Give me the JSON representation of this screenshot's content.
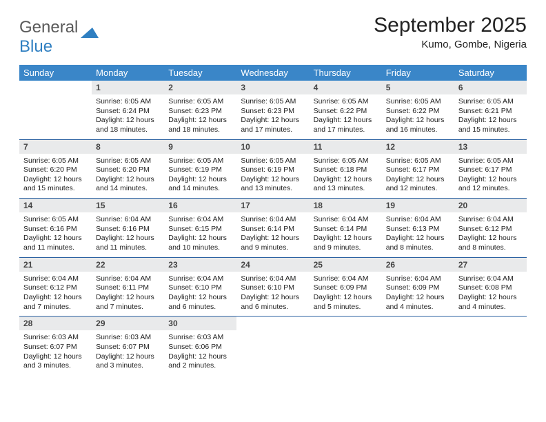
{
  "logo": {
    "text1": "General",
    "text2": "Blue"
  },
  "title": "September 2025",
  "location": "Kumo, Gombe, Nigeria",
  "colors": {
    "header_bg": "#3a86c8",
    "header_text": "#ffffff",
    "daynum_bg": "#e9eaeb",
    "week_border": "#2960a0",
    "logo_gray": "#5a5a5a",
    "logo_blue": "#2f7fc1"
  },
  "dayNames": [
    "Sunday",
    "Monday",
    "Tuesday",
    "Wednesday",
    "Thursday",
    "Friday",
    "Saturday"
  ],
  "weeks": [
    [
      {
        "n": "",
        "sr": "",
        "ss": "",
        "dl": ""
      },
      {
        "n": "1",
        "sr": "6:05 AM",
        "ss": "6:24 PM",
        "dl": "12 hours and 18 minutes."
      },
      {
        "n": "2",
        "sr": "6:05 AM",
        "ss": "6:23 PM",
        "dl": "12 hours and 18 minutes."
      },
      {
        "n": "3",
        "sr": "6:05 AM",
        "ss": "6:23 PM",
        "dl": "12 hours and 17 minutes."
      },
      {
        "n": "4",
        "sr": "6:05 AM",
        "ss": "6:22 PM",
        "dl": "12 hours and 17 minutes."
      },
      {
        "n": "5",
        "sr": "6:05 AM",
        "ss": "6:22 PM",
        "dl": "12 hours and 16 minutes."
      },
      {
        "n": "6",
        "sr": "6:05 AM",
        "ss": "6:21 PM",
        "dl": "12 hours and 15 minutes."
      }
    ],
    [
      {
        "n": "7",
        "sr": "6:05 AM",
        "ss": "6:20 PM",
        "dl": "12 hours and 15 minutes."
      },
      {
        "n": "8",
        "sr": "6:05 AM",
        "ss": "6:20 PM",
        "dl": "12 hours and 14 minutes."
      },
      {
        "n": "9",
        "sr": "6:05 AM",
        "ss": "6:19 PM",
        "dl": "12 hours and 14 minutes."
      },
      {
        "n": "10",
        "sr": "6:05 AM",
        "ss": "6:19 PM",
        "dl": "12 hours and 13 minutes."
      },
      {
        "n": "11",
        "sr": "6:05 AM",
        "ss": "6:18 PM",
        "dl": "12 hours and 13 minutes."
      },
      {
        "n": "12",
        "sr": "6:05 AM",
        "ss": "6:17 PM",
        "dl": "12 hours and 12 minutes."
      },
      {
        "n": "13",
        "sr": "6:05 AM",
        "ss": "6:17 PM",
        "dl": "12 hours and 12 minutes."
      }
    ],
    [
      {
        "n": "14",
        "sr": "6:05 AM",
        "ss": "6:16 PM",
        "dl": "12 hours and 11 minutes."
      },
      {
        "n": "15",
        "sr": "6:04 AM",
        "ss": "6:16 PM",
        "dl": "12 hours and 11 minutes."
      },
      {
        "n": "16",
        "sr": "6:04 AM",
        "ss": "6:15 PM",
        "dl": "12 hours and 10 minutes."
      },
      {
        "n": "17",
        "sr": "6:04 AM",
        "ss": "6:14 PM",
        "dl": "12 hours and 9 minutes."
      },
      {
        "n": "18",
        "sr": "6:04 AM",
        "ss": "6:14 PM",
        "dl": "12 hours and 9 minutes."
      },
      {
        "n": "19",
        "sr": "6:04 AM",
        "ss": "6:13 PM",
        "dl": "12 hours and 8 minutes."
      },
      {
        "n": "20",
        "sr": "6:04 AM",
        "ss": "6:12 PM",
        "dl": "12 hours and 8 minutes."
      }
    ],
    [
      {
        "n": "21",
        "sr": "6:04 AM",
        "ss": "6:12 PM",
        "dl": "12 hours and 7 minutes."
      },
      {
        "n": "22",
        "sr": "6:04 AM",
        "ss": "6:11 PM",
        "dl": "12 hours and 7 minutes."
      },
      {
        "n": "23",
        "sr": "6:04 AM",
        "ss": "6:10 PM",
        "dl": "12 hours and 6 minutes."
      },
      {
        "n": "24",
        "sr": "6:04 AM",
        "ss": "6:10 PM",
        "dl": "12 hours and 6 minutes."
      },
      {
        "n": "25",
        "sr": "6:04 AM",
        "ss": "6:09 PM",
        "dl": "12 hours and 5 minutes."
      },
      {
        "n": "26",
        "sr": "6:04 AM",
        "ss": "6:09 PM",
        "dl": "12 hours and 4 minutes."
      },
      {
        "n": "27",
        "sr": "6:04 AM",
        "ss": "6:08 PM",
        "dl": "12 hours and 4 minutes."
      }
    ],
    [
      {
        "n": "28",
        "sr": "6:03 AM",
        "ss": "6:07 PM",
        "dl": "12 hours and 3 minutes."
      },
      {
        "n": "29",
        "sr": "6:03 AM",
        "ss": "6:07 PM",
        "dl": "12 hours and 3 minutes."
      },
      {
        "n": "30",
        "sr": "6:03 AM",
        "ss": "6:06 PM",
        "dl": "12 hours and 2 minutes."
      },
      {
        "n": "",
        "sr": "",
        "ss": "",
        "dl": ""
      },
      {
        "n": "",
        "sr": "",
        "ss": "",
        "dl": ""
      },
      {
        "n": "",
        "sr": "",
        "ss": "",
        "dl": ""
      },
      {
        "n": "",
        "sr": "",
        "ss": "",
        "dl": ""
      }
    ]
  ],
  "labels": {
    "sunrise": "Sunrise:",
    "sunset": "Sunset:",
    "daylight": "Daylight:"
  }
}
